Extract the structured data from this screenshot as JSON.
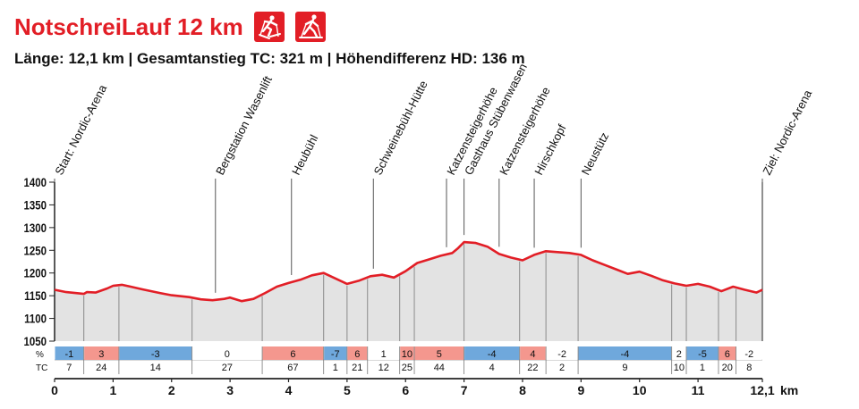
{
  "title": "NotschreiLauf 12 km",
  "subtitle": "Länge: 12,1 km | Gesamtanstieg TC: 321 m | Höhendifferenz HD: 136 m",
  "icons": [
    "skating-skier-icon",
    "classic-skier-icon"
  ],
  "colors": {
    "title": "#e21e26",
    "profile_line": "#e21e26",
    "profile_fill": "#e3e3e3",
    "uphill_cell": "#f4978e",
    "downhill_cell": "#6fa8dc",
    "flat_cell": "#ffffff"
  },
  "chart_data": {
    "type": "area",
    "xlabel": "km",
    "ylim": [
      1050,
      1400
    ],
    "xlim": [
      0,
      12.1
    ],
    "y_ticks": [
      1400,
      1350,
      1300,
      1250,
      1200,
      1150,
      1100,
      1050
    ],
    "x_ticks": [
      "0",
      "1",
      "2",
      "3",
      "4",
      "5",
      "6",
      "7",
      "8",
      "9",
      "10",
      "11",
      "12,1"
    ],
    "x_tick_values": [
      0,
      1,
      2,
      3,
      4,
      5,
      6,
      7,
      8,
      9,
      10,
      11,
      12.1
    ],
    "profile": {
      "x": [
        0,
        0.2,
        0.5,
        0.55,
        0.7,
        0.9,
        1.0,
        1.15,
        1.3,
        1.5,
        1.8,
        2.0,
        2.3,
        2.5,
        2.7,
        2.9,
        3.0,
        3.2,
        3.4,
        3.6,
        3.8,
        4.0,
        4.2,
        4.4,
        4.6,
        4.8,
        5.0,
        5.2,
        5.4,
        5.6,
        5.8,
        6.0,
        6.2,
        6.4,
        6.6,
        6.8,
        6.9,
        7.0,
        7.2,
        7.4,
        7.6,
        7.8,
        8.0,
        8.2,
        8.4,
        8.6,
        8.8,
        9.0,
        9.2,
        9.4,
        9.6,
        9.8,
        10.0,
        10.2,
        10.4,
        10.6,
        10.8,
        11.0,
        11.2,
        11.4,
        11.6,
        11.8,
        12.0,
        12.1
      ],
      "elevation": [
        1163,
        1158,
        1154,
        1158,
        1157,
        1166,
        1172,
        1174,
        1170,
        1164,
        1156,
        1151,
        1147,
        1142,
        1140,
        1143,
        1146,
        1138,
        1143,
        1156,
        1170,
        1178,
        1185,
        1195,
        1200,
        1188,
        1176,
        1183,
        1193,
        1196,
        1190,
        1204,
        1222,
        1230,
        1238,
        1244,
        1255,
        1268,
        1266,
        1258,
        1242,
        1234,
        1228,
        1240,
        1248,
        1246,
        1244,
        1240,
        1228,
        1218,
        1208,
        1198,
        1203,
        1194,
        1184,
        1177,
        1172,
        1176,
        1170,
        1160,
        1170,
        1163,
        1157,
        1163
      ]
    },
    "waypoints": [
      {
        "label": "Start: Nordic-Arena",
        "km": 0.0
      },
      {
        "label": "Bergstation Wasenlift",
        "km": 2.75
      },
      {
        "label": "Heubühl",
        "km": 4.05
      },
      {
        "label": "Schweinebühl-Hütte",
        "km": 5.45
      },
      {
        "label": "Katzensteigerhöhe",
        "km": 6.7
      },
      {
        "label": "Gasthaus Stübenwasen",
        "km": 7.0
      },
      {
        "label": "Katzensteigerhöhe",
        "km": 7.6
      },
      {
        "label": "Hirschkopf",
        "km": 8.2
      },
      {
        "label": "Neustütz",
        "km": 9.0
      },
      {
        "label": "Ziel: Nordic-Arena",
        "km": 12.1
      }
    ],
    "segments_row_label": "%",
    "tc_row_label": "TC",
    "segments": [
      {
        "start": 0.0,
        "end": 0.5,
        "pct": "-1",
        "tc": "7",
        "kind": "down"
      },
      {
        "start": 0.5,
        "end": 1.1,
        "pct": "3",
        "tc": "24",
        "kind": "up"
      },
      {
        "start": 1.1,
        "end": 2.35,
        "pct": "-3",
        "tc": "14",
        "kind": "down"
      },
      {
        "start": 2.35,
        "end": 3.55,
        "pct": "0",
        "tc": "27",
        "kind": "flat"
      },
      {
        "start": 3.55,
        "end": 4.6,
        "pct": "6",
        "tc": "67",
        "kind": "up"
      },
      {
        "start": 4.6,
        "end": 5.0,
        "pct": "-7",
        "tc": "1",
        "kind": "down"
      },
      {
        "start": 5.0,
        "end": 5.35,
        "pct": "6",
        "tc": "21",
        "kind": "up"
      },
      {
        "start": 5.35,
        "end": 5.9,
        "pct": "1",
        "tc": "12",
        "kind": "flat"
      },
      {
        "start": 5.9,
        "end": 6.15,
        "pct": "10",
        "tc": "25",
        "kind": "up"
      },
      {
        "start": 6.15,
        "end": 7.0,
        "pct": "5",
        "tc": "44",
        "kind": "up"
      },
      {
        "start": 7.0,
        "end": 7.95,
        "pct": "-4",
        "tc": "4",
        "kind": "down"
      },
      {
        "start": 7.95,
        "end": 8.4,
        "pct": "4",
        "tc": "22",
        "kind": "up"
      },
      {
        "start": 8.4,
        "end": 8.95,
        "pct": "-2",
        "tc": "2",
        "kind": "flat"
      },
      {
        "start": 8.95,
        "end": 10.55,
        "pct": "-4",
        "tc": "9",
        "kind": "down"
      },
      {
        "start": 10.55,
        "end": 10.8,
        "pct": "2",
        "tc": "10",
        "kind": "flat"
      },
      {
        "start": 10.8,
        "end": 11.35,
        "pct": "-5",
        "tc": "1",
        "kind": "down"
      },
      {
        "start": 11.35,
        "end": 11.65,
        "pct": "6",
        "tc": "20",
        "kind": "up"
      },
      {
        "start": 11.65,
        "end": 12.1,
        "pct": "-2",
        "tc": "8",
        "kind": "flat"
      }
    ]
  }
}
